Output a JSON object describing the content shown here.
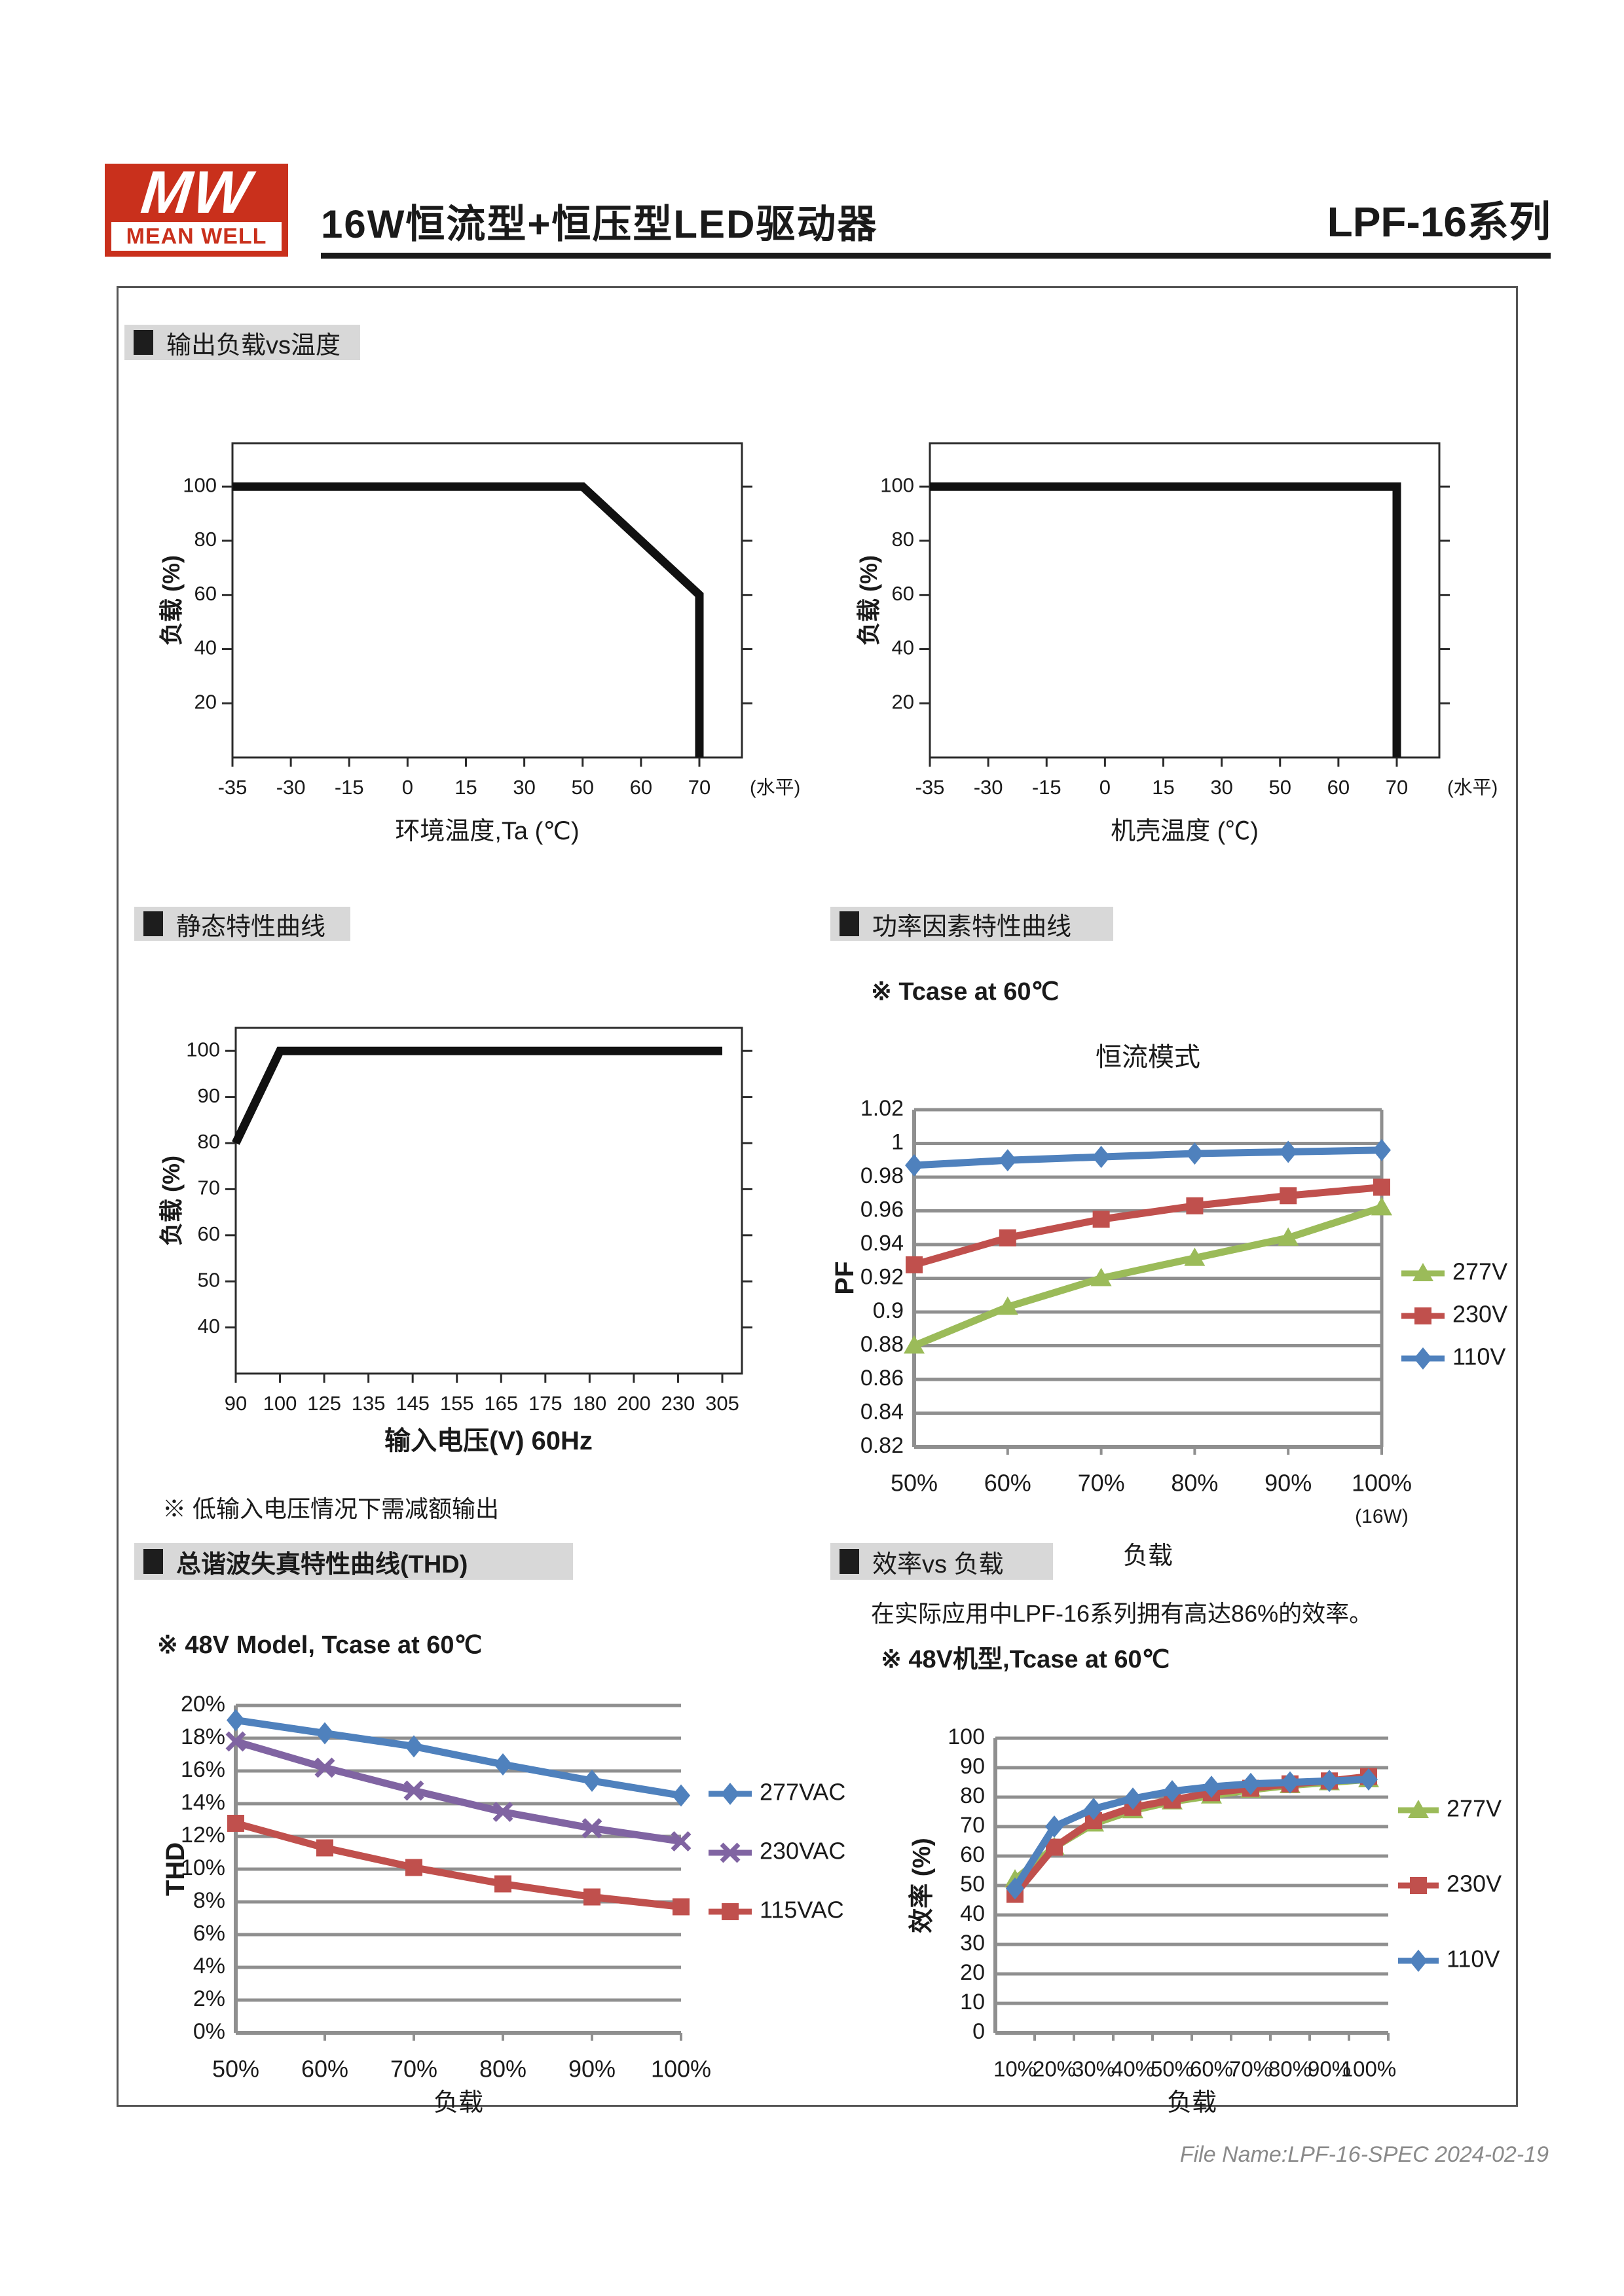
{
  "header": {
    "logo_mw": "MW",
    "logo_name": "MEAN WELL",
    "logo_color": "#c9301c",
    "title": "16W恒流型+恒压型LED驱动器",
    "series_name": "LPF-16系列"
  },
  "sections": {
    "derating": {
      "heading": "输出负载vs温度"
    },
    "static_curve": {
      "heading": "静态特性曲线",
      "note": "※ 低输入电压情况下需减额输出"
    },
    "pf": {
      "heading": "功率因素特性曲线",
      "note": "※ Tcase at 60℃"
    },
    "thd": {
      "heading": "总谐波失真特性曲线(THD)",
      "note": "※ 48V Model, Tcase at 60℃"
    },
    "eff": {
      "heading": "效率vs 负载",
      "text": "在实际应用中LPF-16系列拥有高达86%的效率。",
      "note": "※ 48V机型,Tcase at 60℃"
    }
  },
  "footer": {
    "file_name": "File Name:LPF-16-SPEC 2024-02-19"
  },
  "colors": {
    "accent_red": "#c9301c",
    "series_blue": "#4f81bd",
    "series_red": "#c0504d",
    "series_green": "#9bbb59",
    "series_purple": "#8064a2",
    "grid_gray": "#8f8f8f",
    "heading_bg": "#d8d8d8"
  },
  "chart_data": [
    {
      "id": "ambient-derating",
      "type": "line",
      "title": "",
      "xlabel": "环境温度,Ta (℃)",
      "ylabel": "负载 (%)",
      "categories": [
        "-35",
        "-30",
        "-15",
        "0",
        "15",
        "30",
        "50",
        "60",
        "70"
      ],
      "x_suffix": "(水平)",
      "ylim": [
        0,
        116
      ],
      "y_tick_values": [
        20,
        40,
        60,
        80,
        100
      ],
      "y_tick_labels": [
        "20",
        "40",
        "60",
        "80",
        "100"
      ],
      "grid": false,
      "series": [
        {
          "name": "负载",
          "color": "#111111",
          "points": [
            [
              0,
              100
            ],
            [
              6,
              100
            ],
            [
              8,
              60
            ],
            [
              8,
              0
            ]
          ]
        }
      ]
    },
    {
      "id": "case-derating",
      "type": "line",
      "title": "",
      "xlabel": "机壳温度 (℃)",
      "ylabel": "负载 (%)",
      "categories": [
        "-35",
        "-30",
        "-15",
        "0",
        "15",
        "30",
        "50",
        "60",
        "70"
      ],
      "x_suffix": "(水平)",
      "ylim": [
        0,
        116
      ],
      "y_tick_values": [
        20,
        40,
        60,
        80,
        100
      ],
      "y_tick_labels": [
        "20",
        "40",
        "60",
        "80",
        "100"
      ],
      "grid": false,
      "series": [
        {
          "name": "负载",
          "color": "#111111",
          "points": [
            [
              0,
              100
            ],
            [
              8,
              100
            ],
            [
              8,
              0
            ]
          ]
        }
      ]
    },
    {
      "id": "static-characteristic",
      "type": "line",
      "title": "",
      "xlabel": "输入电压(V) 60Hz",
      "ylabel": "负载 (%)",
      "categories": [
        "90",
        "100",
        "125",
        "135",
        "145",
        "155",
        "165",
        "175",
        "180",
        "200",
        "230",
        "305"
      ],
      "ylim": [
        30,
        105
      ],
      "y_tick_values": [
        40,
        50,
        60,
        70,
        80,
        90,
        100
      ],
      "y_tick_labels": [
        "40",
        "50",
        "60",
        "70",
        "80",
        "90",
        "100"
      ],
      "grid": false,
      "series": [
        {
          "name": "负载",
          "color": "#111111",
          "points": [
            [
              0,
              80
            ],
            [
              1,
              100
            ],
            [
              11,
              100
            ]
          ]
        }
      ]
    },
    {
      "id": "pf-characteristic",
      "type": "line",
      "title": "恒流模式",
      "xlabel": "负载",
      "ylabel": "PF",
      "categories": [
        "50%",
        "60%",
        "70%",
        "80%",
        "90%",
        "100%"
      ],
      "x_sub": "(16W)",
      "ylim": [
        0.82,
        1.02
      ],
      "y_tick_values": [
        0.82,
        0.84,
        0.86,
        0.88,
        0.9,
        0.92,
        0.94,
        0.96,
        0.98,
        1,
        1.02
      ],
      "y_tick_labels": [
        "0.82",
        "0.84",
        "0.86",
        "0.88",
        "0.9",
        "0.92",
        "0.94",
        "0.96",
        "0.98",
        "1",
        "1.02"
      ],
      "grid": true,
      "box": true,
      "legend_position": "right",
      "series": [
        {
          "name": "277V",
          "color": "#9bbb59",
          "marker": "triangle",
          "values": [
            0.88,
            0.903,
            0.92,
            0.932,
            0.944,
            0.962
          ]
        },
        {
          "name": "230V",
          "color": "#c0504d",
          "marker": "square",
          "values": [
            0.928,
            0.944,
            0.955,
            0.963,
            0.969,
            0.974
          ]
        },
        {
          "name": "110V",
          "color": "#4f81bd",
          "marker": "diamond",
          "values": [
            0.987,
            0.99,
            0.992,
            0.994,
            0.995,
            0.996
          ]
        }
      ]
    },
    {
      "id": "thd",
      "type": "line",
      "title": "",
      "xlabel": "负载",
      "ylabel": "THD",
      "categories": [
        "50%",
        "60%",
        "70%",
        "80%",
        "90%",
        "100%"
      ],
      "ylim": [
        0,
        20
      ],
      "y_tick_values": [
        0,
        2,
        4,
        6,
        8,
        10,
        12,
        14,
        16,
        18,
        20
      ],
      "y_tick_labels": [
        "0%",
        "2%",
        "4%",
        "6%",
        "8%",
        "10%",
        "12%",
        "14%",
        "16%",
        "18%",
        "20%"
      ],
      "grid": true,
      "legend_position": "right",
      "series": [
        {
          "name": "277VAC",
          "color": "#4f81bd",
          "marker": "diamond",
          "values": [
            19.1,
            18.3,
            17.5,
            16.4,
            15.4,
            14.5
          ]
        },
        {
          "name": "230VAC",
          "color": "#8064a2",
          "marker": "x",
          "values": [
            17.8,
            16.2,
            14.8,
            13.5,
            12.5,
            11.7
          ]
        },
        {
          "name": "115VAC",
          "color": "#c0504d",
          "marker": "square",
          "values": [
            12.8,
            11.3,
            10.1,
            9.1,
            8.3,
            7.7
          ]
        }
      ]
    },
    {
      "id": "efficiency",
      "type": "line",
      "title": "",
      "xlabel": "负载",
      "ylabel": "效率 (%)",
      "categories": [
        "10%",
        "20%",
        "30%",
        "40%",
        "50%",
        "60%",
        "70%",
        "80%",
        "90%",
        "100%"
      ],
      "ylim": [
        0,
        100
      ],
      "y_tick_values": [
        0,
        10,
        20,
        30,
        40,
        50,
        60,
        70,
        80,
        90,
        100
      ],
      "y_tick_labels": [
        "0",
        "10",
        "20",
        "30",
        "40",
        "50",
        "60",
        "70",
        "80",
        "90",
        "100"
      ],
      "grid": true,
      "legend_position": "right",
      "category_centered": true,
      "series": [
        {
          "name": "277V",
          "color": "#9bbb59",
          "marker": "triangle",
          "values": [
            52,
            63,
            71,
            75.5,
            78.5,
            80.5,
            82.5,
            84,
            85,
            86
          ]
        },
        {
          "name": "230V",
          "color": "#c0504d",
          "marker": "square",
          "values": [
            47,
            63,
            72,
            76.5,
            79,
            81.5,
            83,
            84.5,
            85.5,
            87
          ]
        },
        {
          "name": "110V",
          "color": "#4f81bd",
          "marker": "diamond",
          "values": [
            49,
            70,
            76,
            79.5,
            82,
            83.5,
            84.5,
            85,
            85.5,
            86
          ]
        }
      ]
    }
  ]
}
